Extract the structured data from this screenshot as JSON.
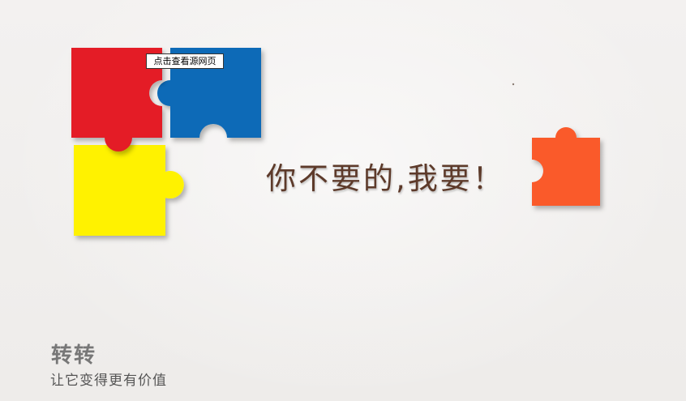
{
  "overlay": {
    "link_text": "点击查看源网页"
  },
  "hero": {
    "headline": "你不要的,我要！"
  },
  "brand": {
    "name": "转转",
    "slogan": "让它变得更有价值"
  },
  "colors": {
    "red": "#e41e26",
    "blue": "#0a6bb7",
    "yellow": "#fff200",
    "orange": "#fa5a2c",
    "headline": "#5d3a2a",
    "background": "#f1efee"
  }
}
